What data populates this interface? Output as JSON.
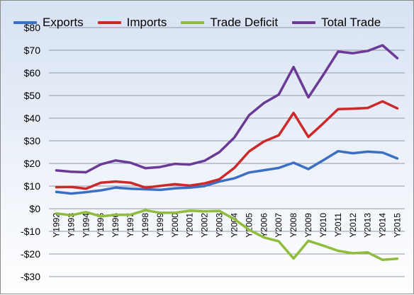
{
  "chart_data": {
    "type": "line",
    "title": "",
    "xlabel": "",
    "ylabel": "",
    "categories": [
      "Y1992",
      "Y1993",
      "Y1994",
      "Y1995",
      "Y1996",
      "Y1997",
      "Y1998",
      "Y1999",
      "Y2000",
      "Y2001",
      "Y2002",
      "Y2003",
      "Y2004",
      "Y2005",
      "Y2006",
      "Y2007",
      "Y2008",
      "Y2009",
      "Y2010",
      "Y2011",
      "Y2012",
      "Y2013",
      "Y2014",
      "Y2015"
    ],
    "ylim": [
      -30,
      80
    ],
    "y_ticks": [
      80,
      70,
      60,
      50,
      40,
      30,
      20,
      10,
      0,
      -10,
      -20,
      -30
    ],
    "y_tick_labels": [
      "$80",
      "$70",
      "$60",
      "$50",
      "$40",
      "$30",
      "$20",
      "$10",
      "$0",
      "-$10",
      "-$20",
      "-$30"
    ],
    "grid": "horizontal",
    "legend_position": "top-left",
    "series": [
      {
        "name": "Exports",
        "color": "#3a6fc4",
        "values": [
          7.4,
          6.7,
          7.3,
          8.1,
          9.3,
          8.8,
          8.6,
          8.3,
          9.0,
          9.3,
          10.0,
          12.0,
          13.4,
          16.0,
          17.0,
          18.0,
          20.3,
          17.5,
          21.4,
          25.4,
          24.5,
          25.2,
          24.8,
          22.2
        ]
      },
      {
        "name": "Imports",
        "color": "#cc2a2a",
        "values": [
          9.5,
          9.6,
          8.8,
          11.5,
          12.0,
          11.5,
          9.3,
          10.1,
          10.8,
          10.2,
          11.2,
          13.0,
          18.0,
          25.3,
          29.7,
          32.4,
          42.3,
          31.7,
          37.7,
          44.0,
          44.2,
          44.5,
          47.4,
          44.3
        ]
      },
      {
        "name": "Trade Deficit",
        "color": "#8fbc3a",
        "values": [
          -2.1,
          -2.9,
          -1.5,
          -3.4,
          -2.7,
          -2.7,
          -0.7,
          -1.8,
          -1.8,
          -0.9,
          -1.2,
          -1.0,
          -4.6,
          -9.3,
          -12.7,
          -14.4,
          -22.0,
          -14.2,
          -16.3,
          -18.6,
          -19.7,
          -19.3,
          -22.6,
          -22.1
        ]
      },
      {
        "name": "Total Trade",
        "color": "#6a3a96",
        "values": [
          16.9,
          16.3,
          16.1,
          19.6,
          21.3,
          20.3,
          17.9,
          18.4,
          19.8,
          19.5,
          21.2,
          25.0,
          31.4,
          41.3,
          46.7,
          50.4,
          62.6,
          49.2,
          59.1,
          69.4,
          68.7,
          69.7,
          72.2,
          66.5
        ]
      }
    ]
  }
}
